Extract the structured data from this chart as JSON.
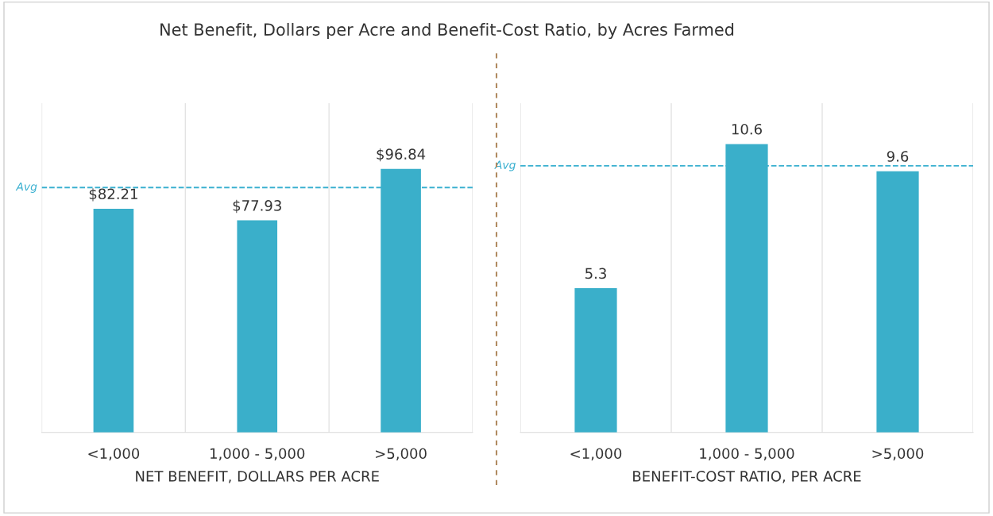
{
  "chart_data": [
    {
      "type": "bar",
      "title": "Net Benefit, Dollars per Acre and Benefit-Cost Ratio, by Acres Farmed",
      "xlabel": "NET BENEFIT, DOLLARS PER ACRE",
      "categories": [
        "<1,000",
        "1,000 - 5,000",
        ">5,000"
      ],
      "values": [
        82.21,
        77.93,
        96.84
      ],
      "value_labels": [
        "$82.21",
        "$77.93",
        "$96.84"
      ],
      "color": "#3aafca",
      "ylim": [
        0,
        121
      ],
      "grid": "x",
      "ref_lines": [
        {
          "axis": "y",
          "value": 90,
          "label": "Avg",
          "color": "#3ab0d0",
          "line_style": "dashed"
        }
      ]
    },
    {
      "type": "bar",
      "xlabel": "BENEFIT-COST RATIO, PER ACRE",
      "categories": [
        "<1,000",
        "1,000 - 5,000",
        ">5,000"
      ],
      "values": [
        5.3,
        10.6,
        9.6
      ],
      "data_labels": true,
      "color": "#3aafca",
      "ylim": [
        0,
        12.1
      ],
      "grid": "x",
      "ref_lines": [
        {
          "axis": "y",
          "value": 9.8,
          "label": "Avg",
          "color": "#3ab0d0",
          "line_style": "dashed"
        }
      ]
    }
  ]
}
